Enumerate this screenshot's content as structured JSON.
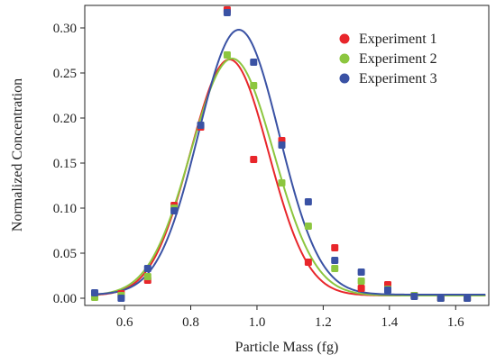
{
  "chart_data": {
    "type": "scatter",
    "title": "",
    "xlabel": "Particle Mass (fg)",
    "ylabel": "Normalized Concentration",
    "xlim": [
      0.48,
      1.7
    ],
    "ylim": [
      -0.008,
      0.325
    ],
    "xticks": [
      0.6,
      0.8,
      1.0,
      1.2,
      1.4,
      1.6
    ],
    "xtick_labels": [
      "0.6",
      "0.8",
      "1.0",
      "1.2",
      "1.4",
      "1.6"
    ],
    "yticks": [
      0.0,
      0.05,
      0.1,
      0.15,
      0.2,
      0.25,
      0.3
    ],
    "ytick_labels": [
      "0.00",
      "0.05",
      "0.10",
      "0.15",
      "0.20",
      "0.25",
      "0.30"
    ],
    "grid": false,
    "legend_position": "top-right",
    "x": [
      0.51,
      0.59,
      0.67,
      0.75,
      0.83,
      0.91,
      0.99,
      1.075,
      1.155,
      1.235,
      1.315,
      1.395,
      1.475,
      1.555,
      1.635
    ],
    "series": [
      {
        "name": "Experiment 1",
        "color": "#e8262b",
        "values": [
          0.005,
          0.005,
          0.02,
          0.103,
          0.19,
          0.32,
          0.154,
          0.175,
          0.04,
          0.056,
          0.011,
          0.015,
          0.003,
          0.0,
          0.0
        ],
        "fit": {
          "type": "gaussian",
          "amplitude": 0.262,
          "center": 0.917,
          "sigma": 0.118,
          "offset": 0.003
        }
      },
      {
        "name": "Experiment 2",
        "color": "#8cc63f",
        "values": [
          0.001,
          0.003,
          0.024,
          0.1,
          0.192,
          0.27,
          0.236,
          0.128,
          0.08,
          0.033,
          0.019,
          0.01,
          0.003,
          0.0,
          0.0
        ],
        "fit": {
          "type": "gaussian",
          "amplitude": 0.263,
          "center": 0.925,
          "sigma": 0.125,
          "offset": 0.003
        }
      },
      {
        "name": "Experiment 3",
        "color": "#3a52a4",
        "values": [
          0.006,
          0.0,
          0.033,
          0.097,
          0.192,
          0.317,
          0.262,
          0.17,
          0.107,
          0.042,
          0.029,
          0.009,
          0.002,
          0.0,
          0.0
        ],
        "fit": {
          "type": "gaussian",
          "amplitude": 0.294,
          "center": 0.945,
          "sigma": 0.122,
          "offset": 0.004
        }
      }
    ]
  }
}
